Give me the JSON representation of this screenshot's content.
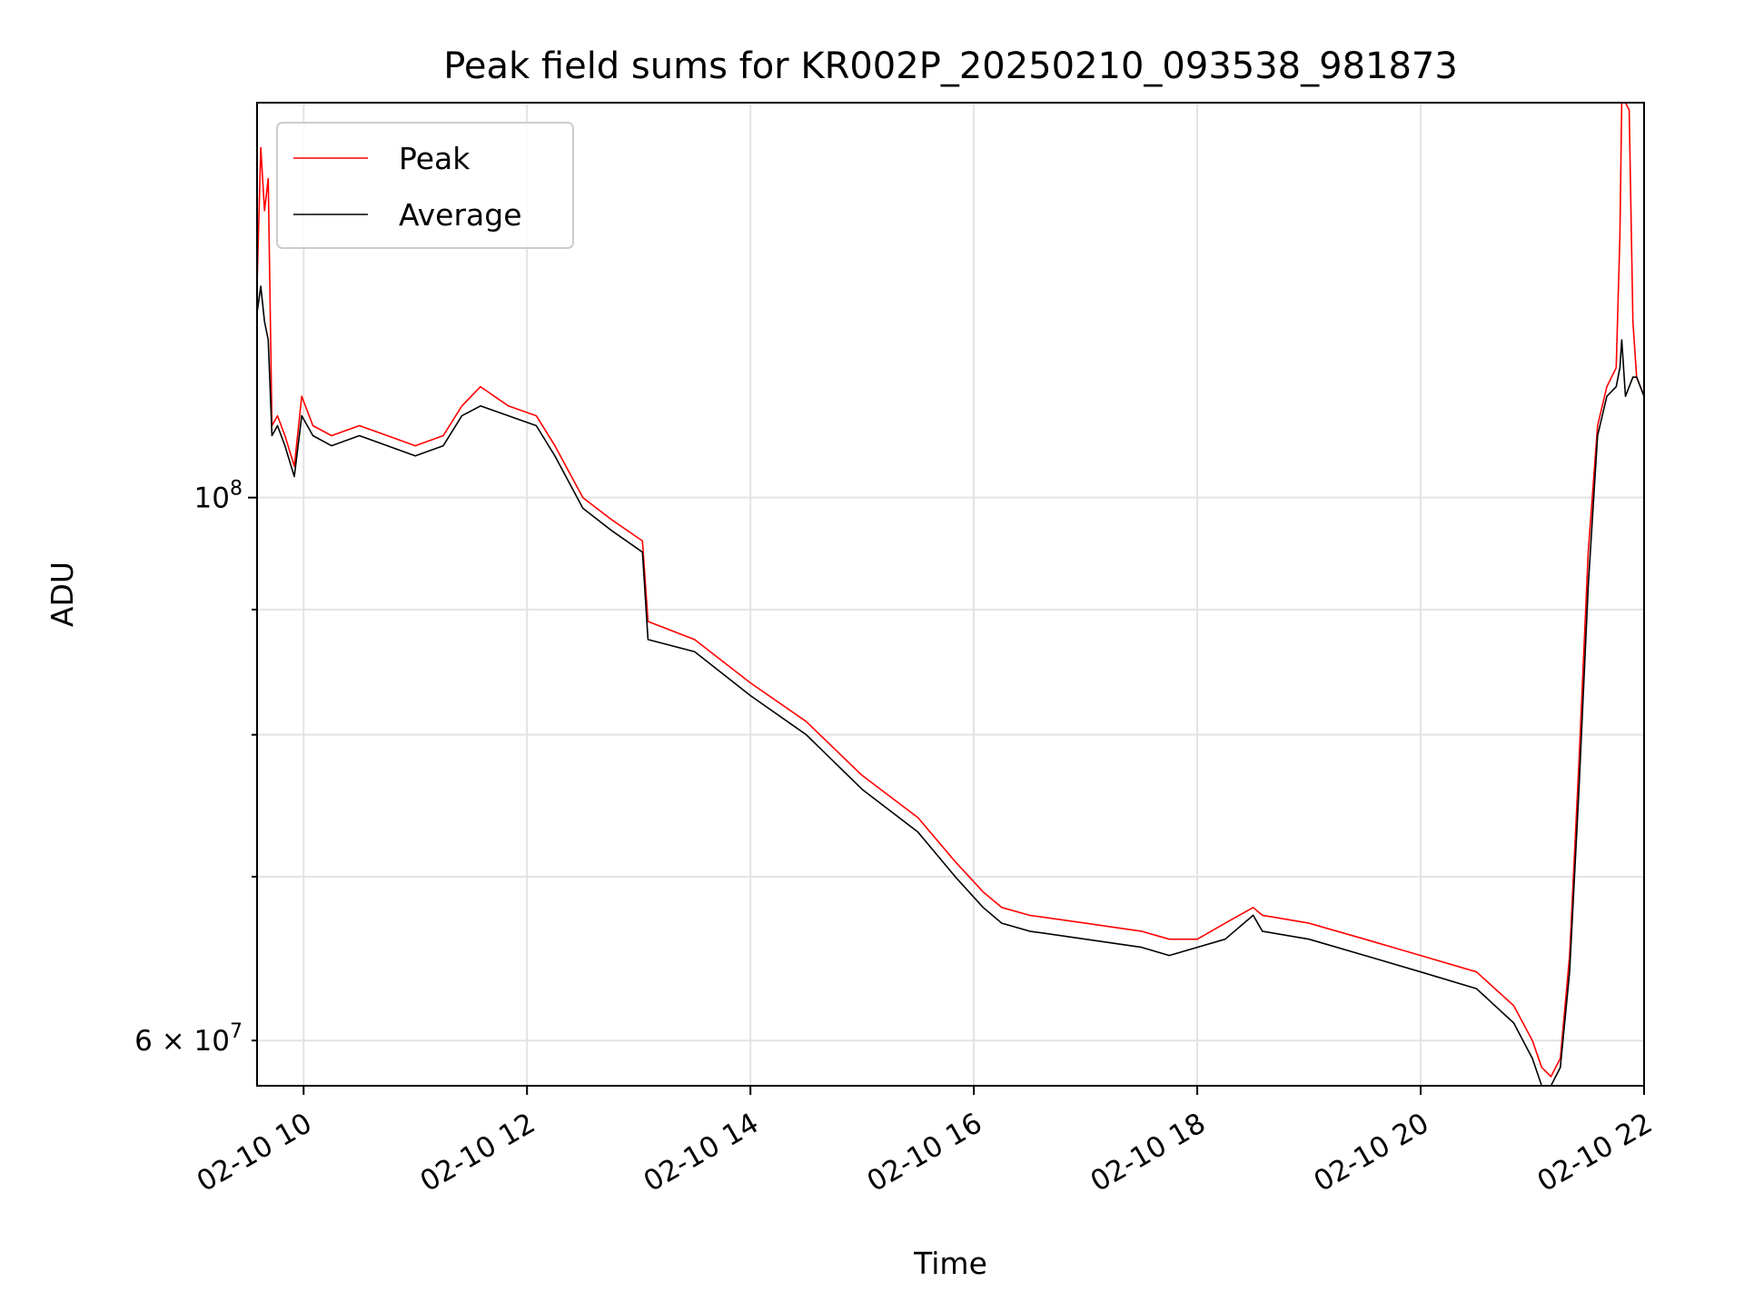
{
  "chart_data": {
    "type": "line",
    "title": "Peak field sums for KR002P_20250210_093538_981873",
    "xlabel": "Time",
    "ylabel": "ADU",
    "yscale": "log",
    "xlim": [
      "2025-02-10 09:35",
      "2025-02-10 22:00"
    ],
    "ylim": [
      57500000,
      145000000
    ],
    "x_ticks": [
      {
        "value": "2025-02-10 10:00",
        "label": "02-10 10"
      },
      {
        "value": "2025-02-10 12:00",
        "label": "02-10 12"
      },
      {
        "value": "2025-02-10 14:00",
        "label": "02-10 14"
      },
      {
        "value": "2025-02-10 16:00",
        "label": "02-10 16"
      },
      {
        "value": "2025-02-10 18:00",
        "label": "02-10 18"
      },
      {
        "value": "2025-02-10 20:00",
        "label": "02-10 20"
      },
      {
        "value": "2025-02-10 22:00",
        "label": "02-10 22"
      }
    ],
    "y_major_ticks": [
      {
        "value": 100000000,
        "base": "10",
        "exp": "8"
      }
    ],
    "y_minor_ticks": [
      {
        "value": 60000000,
        "label": "6 × 10",
        "exp": "7"
      },
      {
        "value": 70000000
      },
      {
        "value": 80000000
      },
      {
        "value": 90000000
      }
    ],
    "grid": true,
    "legend": "top-left",
    "series": [
      {
        "name": "Peak",
        "color": "#ff0000",
        "x": [
          "2025-02-10 09:35",
          "2025-02-10 09:37",
          "2025-02-10 09:39",
          "2025-02-10 09:41",
          "2025-02-10 09:43",
          "2025-02-10 09:46",
          "2025-02-10 09:50",
          "2025-02-10 09:55",
          "2025-02-10 09:59",
          "2025-02-10 10:05",
          "2025-02-10 10:15",
          "2025-02-10 10:30",
          "2025-02-10 10:45",
          "2025-02-10 11:00",
          "2025-02-10 11:15",
          "2025-02-10 11:25",
          "2025-02-10 11:35",
          "2025-02-10 11:50",
          "2025-02-10 12:05",
          "2025-02-10 12:15",
          "2025-02-10 12:30",
          "2025-02-10 12:45",
          "2025-02-10 13:02",
          "2025-02-10 13:05",
          "2025-02-10 13:30",
          "2025-02-10 14:00",
          "2025-02-10 14:30",
          "2025-02-10 15:00",
          "2025-02-10 15:30",
          "2025-02-10 15:50",
          "2025-02-10 16:05",
          "2025-02-10 16:15",
          "2025-02-10 16:30",
          "2025-02-10 17:00",
          "2025-02-10 17:30",
          "2025-02-10 17:45",
          "2025-02-10 18:00",
          "2025-02-10 18:15",
          "2025-02-10 18:30",
          "2025-02-10 18:35",
          "2025-02-10 19:00",
          "2025-02-10 19:30",
          "2025-02-10 20:00",
          "2025-02-10 20:30",
          "2025-02-10 20:50",
          "2025-02-10 21:00",
          "2025-02-10 21:05",
          "2025-02-10 21:10",
          "2025-02-10 21:15",
          "2025-02-10 21:20",
          "2025-02-10 21:25",
          "2025-02-10 21:30",
          "2025-02-10 21:35",
          "2025-02-10 21:40",
          "2025-02-10 21:45",
          "2025-02-10 21:47",
          "2025-02-10 21:48",
          "2025-02-10 21:50",
          "2025-02-10 21:52",
          "2025-02-10 21:54",
          "2025-02-10 21:56",
          "2025-02-10 21:58",
          "2025-02-10 22:00"
        ],
        "y": [
          122000000,
          139000000,
          131000000,
          135000000,
          107000000,
          108000000,
          106000000,
          103000000,
          110000000,
          107000000,
          106000000,
          107000000,
          106000000,
          105000000,
          106000000,
          109000000,
          111000000,
          109000000,
          108000000,
          105000000,
          100000000,
          98000000,
          96000000,
          89000000,
          87500000,
          84000000,
          81000000,
          77000000,
          74000000,
          71000000,
          69000000,
          68000000,
          67500000,
          67000000,
          66500000,
          66000000,
          66000000,
          67000000,
          68000000,
          67500000,
          67000000,
          66000000,
          65000000,
          64000000,
          62000000,
          60000000,
          58500000,
          58000000,
          59000000,
          65000000,
          78000000,
          95000000,
          107000000,
          111000000,
          113000000,
          128000000,
          145000000,
          145000000,
          144000000,
          118000000,
          112000000,
          111000000,
          110000000
        ]
      },
      {
        "name": "Average",
        "color": "#000000",
        "x": [
          "2025-02-10 09:35",
          "2025-02-10 09:37",
          "2025-02-10 09:39",
          "2025-02-10 09:41",
          "2025-02-10 09:43",
          "2025-02-10 09:46",
          "2025-02-10 09:50",
          "2025-02-10 09:55",
          "2025-02-10 09:59",
          "2025-02-10 10:05",
          "2025-02-10 10:15",
          "2025-02-10 10:30",
          "2025-02-10 10:45",
          "2025-02-10 11:00",
          "2025-02-10 11:15",
          "2025-02-10 11:25",
          "2025-02-10 11:35",
          "2025-02-10 11:50",
          "2025-02-10 12:05",
          "2025-02-10 12:15",
          "2025-02-10 12:30",
          "2025-02-10 12:45",
          "2025-02-10 13:02",
          "2025-02-10 13:05",
          "2025-02-10 13:30",
          "2025-02-10 14:00",
          "2025-02-10 14:30",
          "2025-02-10 15:00",
          "2025-02-10 15:30",
          "2025-02-10 15:50",
          "2025-02-10 16:05",
          "2025-02-10 16:15",
          "2025-02-10 16:30",
          "2025-02-10 17:00",
          "2025-02-10 17:30",
          "2025-02-10 17:45",
          "2025-02-10 18:00",
          "2025-02-10 18:15",
          "2025-02-10 18:30",
          "2025-02-10 18:35",
          "2025-02-10 19:00",
          "2025-02-10 19:30",
          "2025-02-10 20:00",
          "2025-02-10 20:30",
          "2025-02-10 20:50",
          "2025-02-10 21:00",
          "2025-02-10 21:05",
          "2025-02-10 21:10",
          "2025-02-10 21:15",
          "2025-02-10 21:20",
          "2025-02-10 21:25",
          "2025-02-10 21:30",
          "2025-02-10 21:35",
          "2025-02-10 21:40",
          "2025-02-10 21:45",
          "2025-02-10 21:47",
          "2025-02-10 21:48",
          "2025-02-10 21:50",
          "2025-02-10 21:52",
          "2025-02-10 21:54",
          "2025-02-10 21:56",
          "2025-02-10 21:58",
          "2025-02-10 22:00"
        ],
        "y": [
          119000000,
          122000000,
          118000000,
          116000000,
          106000000,
          107000000,
          105000000,
          102000000,
          108000000,
          106000000,
          105000000,
          106000000,
          105000000,
          104000000,
          105000000,
          108000000,
          109000000,
          108000000,
          107000000,
          104000000,
          99000000,
          97000000,
          95000000,
          87500000,
          86500000,
          83000000,
          80000000,
          76000000,
          73000000,
          70000000,
          68000000,
          67000000,
          66500000,
          66000000,
          65500000,
          65000000,
          65500000,
          66000000,
          67500000,
          66500000,
          66000000,
          65000000,
          64000000,
          63000000,
          61000000,
          59000000,
          57500000,
          57500000,
          58500000,
          64000000,
          76000000,
          92000000,
          106000000,
          110000000,
          111000000,
          113000000,
          116000000,
          110000000,
          111000000,
          112000000,
          112000000,
          111000000,
          110000000
        ]
      }
    ]
  }
}
